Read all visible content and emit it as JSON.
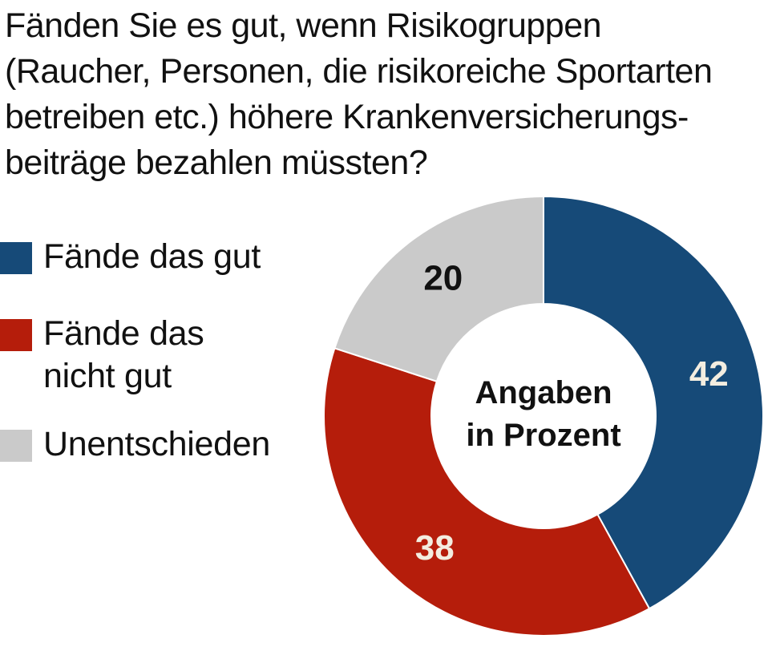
{
  "question_lines": [
    "Fänden Sie es gut, wenn Risikogruppen",
    "(Raucher, Personen, die risikoreiche Sportarten",
    "betreiben etc.) höhere Krankenversicherungs-",
    "beiträge bezahlen müssten?"
  ],
  "legend": [
    {
      "label_lines": [
        "Fände das gut"
      ],
      "color": "#164a78"
    },
    {
      "label_lines": [
        "Fände das",
        "nicht gut"
      ],
      "color": "#b51d0b"
    },
    {
      "label_lines": [
        "Unentschieden"
      ],
      "color": "#cacaca"
    }
  ],
  "chart_data": {
    "type": "pie",
    "subtype": "donut",
    "center_label_lines": [
      "Angaben",
      "in Prozent"
    ],
    "slices": [
      {
        "name": "Fände das gut",
        "value": 42,
        "color": "#164a78",
        "label_color": "#f3ede0"
      },
      {
        "name": "Fände das nicht gut",
        "value": 38,
        "color": "#b51d0b",
        "label_color": "#f3ede0"
      },
      {
        "name": "Unentschieden",
        "value": 20,
        "color": "#cacaca",
        "label_color": "#111111"
      }
    ],
    "start_position": "top",
    "direction": "clockwise",
    "legend_position": "left"
  }
}
